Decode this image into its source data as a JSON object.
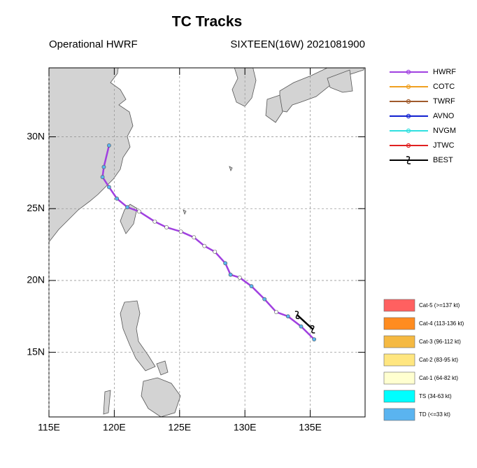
{
  "chart_data": {
    "type": "track-map",
    "title": "TC Tracks",
    "subtitle_left": "Operational HWRF",
    "subtitle_right": "SIXTEEN(16W) 2021081900",
    "xlim": [
      115,
      139.2
    ],
    "ylim": [
      10.5,
      34.8
    ],
    "xticks": [
      {
        "value": 115,
        "label": "115E"
      },
      {
        "value": 120,
        "label": "120E"
      },
      {
        "value": 125,
        "label": "125E"
      },
      {
        "value": 130,
        "label": "130E"
      },
      {
        "value": 135,
        "label": "135E"
      }
    ],
    "yticks": [
      {
        "value": 15,
        "label": "15N"
      },
      {
        "value": 20,
        "label": "20N"
      },
      {
        "value": 25,
        "label": "25N"
      },
      {
        "value": 30,
        "label": "30N"
      }
    ],
    "grid": true,
    "series": [
      {
        "name": "HWRF",
        "color": "#a040e0",
        "x": [
          135.3,
          134.3,
          133.3,
          132.4,
          131.5,
          130.5,
          129.6,
          128.9,
          128.5,
          127.7,
          126.9,
          126.1,
          125.1,
          124.0,
          123.1,
          121.9,
          121.0,
          120.2,
          119.6,
          119.1,
          119.2,
          119.6
        ],
        "values": [
          15.9,
          16.8,
          17.5,
          17.8,
          18.7,
          19.6,
          20.2,
          20.4,
          21.2,
          22.0,
          22.4,
          23.0,
          23.4,
          23.7,
          24.1,
          24.8,
          25.1,
          25.7,
          26.5,
          27.2,
          27.9,
          29.4
        ],
        "point_colors": [
          "#5ab4f0",
          "#5ab4f0",
          "#5ab4f0",
          "#ffffff",
          "#5ab4f0",
          "#5ab4f0",
          "#ffffff",
          "#5ab4f0",
          "#5ab4f0",
          "#ffffff",
          "#ffffff",
          "#ffffff",
          "#ffffff",
          "#ffffff",
          "#ffffff",
          "#ffffff",
          "#5ab4f0",
          "#5ab4f0",
          "#5ab4f0",
          "#5ab4f0",
          "#5ab4f0",
          "#5ab4f0"
        ]
      },
      {
        "name": "COTC",
        "color": "#f0a020",
        "x": [],
        "values": []
      },
      {
        "name": "TWRF",
        "color": "#a05a2c",
        "x": [],
        "values": []
      },
      {
        "name": "AVNO",
        "color": "#1020d0",
        "x": [],
        "values": []
      },
      {
        "name": "NVGM",
        "color": "#30e0e0",
        "x": [],
        "values": []
      },
      {
        "name": "JTWC",
        "color": "#e02020",
        "x": [],
        "values": []
      },
      {
        "name": "BEST",
        "color": "#000000",
        "x": [
          134.0,
          135.2
        ],
        "values": [
          17.6,
          16.6
        ]
      }
    ],
    "categories": [
      "Cat-5 (>=137 kt)",
      "Cat-4 (113-136 kt)",
      "Cat-3 (96-112 kt)",
      "Cat-2 (83-95 kt)",
      "Cat-1 (64-82 kt)",
      "TS (34-63 kt)",
      "TD (<=33 kt)"
    ],
    "category_colors": [
      "#ff6060",
      "#ff8c20",
      "#f5b942",
      "#ffe680",
      "#ffffd0",
      "#00ffff",
      "#5ab4f0"
    ]
  }
}
